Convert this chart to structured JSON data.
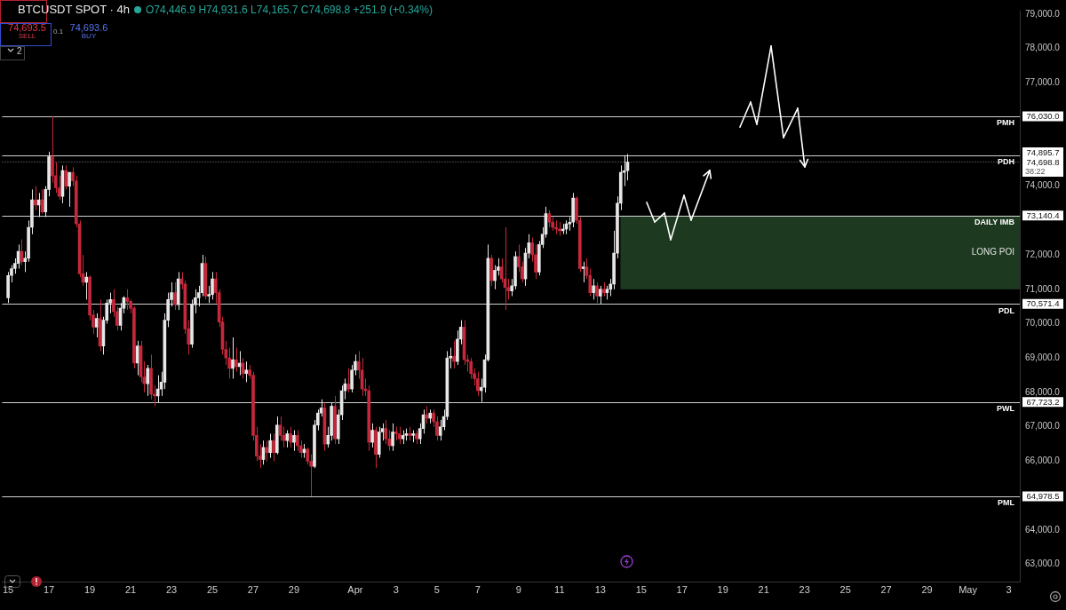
{
  "chart_data": {
    "type": "candlestick",
    "title": "BTCUSDT SPOT · 4h",
    "annotations": [
      "O74,446.9 H74,931.6 L74,165.7 C74,698.8 +251.9 (+0.34%)",
      "74,693.5",
      "SELL",
      "0.1",
      "74,693.6",
      "BUY",
      "2",
      "38:22"
    ],
    "x": [
      "--03-15T00:00",
      "--03-15T04:00",
      "--03-15T08:00",
      "--03-15T12:00",
      "--03-15T16:00",
      "--03-15T20:00",
      "--03-16T00:00",
      "--03-16T04:00",
      "--03-16T08:00",
      "--03-16T12:00",
      "--03-16T16:00",
      "--03-16T20:00",
      "--03-17T00:00",
      "--03-17T04:00",
      "--03-17T08:00",
      "--03-17T12:00",
      "--03-17T16:00",
      "--03-17T20:00",
      "--03-18T00:00",
      "--03-18T04:00",
      "--03-18T08:00",
      "--03-18T12:00",
      "--03-18T16:00",
      "--03-18T20:00",
      "--03-19T00:00",
      "--03-19T04:00",
      "--03-19T08:00",
      "--03-19T12:00",
      "--03-19T16:00",
      "--03-19T20:00",
      "--03-20T00:00",
      "--03-20T04:00",
      "--03-20T08:00",
      "--03-20T12:00",
      "--03-20T16:00",
      "--03-20T20:00",
      "--03-21T00:00",
      "--03-21T04:00",
      "--03-21T08:00",
      "--03-21T12:00",
      "--03-21T16:00",
      "--03-21T20:00",
      "--03-22T00:00",
      "--03-22T04:00",
      "--03-22T08:00",
      "--03-22T12:00",
      "--03-22T16:00",
      "--03-22T20:00",
      "--03-23T00:00",
      "--03-23T04:00",
      "--03-23T08:00",
      "--03-23T12:00",
      "--03-23T16:00",
      "--03-23T20:00",
      "--03-24T00:00",
      "--03-24T04:00",
      "--03-24T08:00",
      "--03-24T12:00",
      "--03-24T16:00",
      "--03-24T20:00",
      "--03-25T00:00",
      "--03-25T04:00",
      "--03-25T08:00",
      "--03-25T12:00",
      "--03-25T16:00",
      "--03-25T20:00",
      "--03-26T00:00",
      "--03-26T04:00",
      "--03-26T08:00",
      "--03-26T12:00",
      "--03-26T16:00",
      "--03-26T20:00",
      "--03-27T00:00",
      "--03-27T04:00",
      "--03-27T08:00",
      "--03-27T12:00",
      "--03-27T16:00",
      "--03-27T20:00",
      "--03-28T00:00",
      "--03-28T04:00",
      "--03-28T08:00",
      "--03-28T12:00",
      "--03-28T16:00",
      "--03-28T20:00",
      "--03-29T00:00",
      "--03-29T04:00",
      "--03-29T08:00",
      "--03-29T12:00",
      "--03-29T16:00",
      "--03-29T20:00",
      "--03-30T00:00",
      "--03-30T04:00",
      "--03-30T08:00",
      "--03-30T12:00",
      "--03-30T16:00",
      "--03-30T20:00",
      "--03-31T00:00",
      "--03-31T04:00",
      "--03-31T08:00",
      "--03-31T12:00",
      "--03-31T16:00",
      "--03-31T20:00",
      "--04-01T00:00",
      "--04-01T04:00",
      "--04-01T08:00",
      "--04-01T12:00",
      "--04-01T16:00",
      "--04-01T20:00",
      "--04-02T00:00",
      "--04-02T04:00",
      "--04-02T08:00",
      "--04-02T12:00",
      "--04-02T16:00",
      "--04-02T20:00",
      "--04-03T00:00",
      "--04-03T04:00",
      "--04-03T08:00",
      "--04-03T12:00",
      "--04-03T16:00",
      "--04-03T20:00",
      "--04-04T00:00",
      "--04-04T04:00",
      "--04-04T08:00",
      "--04-04T12:00",
      "--04-04T16:00",
      "--04-04T20:00",
      "--04-05T00:00",
      "--04-05T04:00",
      "--04-05T08:00",
      "--04-05T12:00",
      "--04-05T16:00",
      "--04-05T20:00",
      "--04-06T00:00",
      "--04-06T04:00",
      "--04-06T08:00",
      "--04-06T12:00",
      "--04-06T16:00",
      "--04-06T20:00",
      "--04-07T00:00",
      "--04-07T04:00",
      "--04-07T08:00",
      "--04-07T12:00",
      "--04-07T16:00",
      "--04-07T20:00",
      "--04-08T00:00",
      "--04-08T04:00",
      "--04-08T08:00",
      "--04-08T12:00",
      "--04-08T16:00",
      "--04-08T20:00",
      "--04-09T00:00",
      "--04-09T04:00",
      "--04-09T08:00",
      "--04-09T12:00",
      "--04-09T16:00",
      "--04-09T20:00",
      "--04-10T00:00",
      "--04-10T04:00",
      "--04-10T08:00",
      "--04-10T12:00",
      "--04-10T16:00",
      "--04-10T20:00",
      "--04-11T00:00",
      "--04-11T04:00",
      "--04-11T08:00",
      "--04-11T12:00",
      "--04-11T16:00",
      "--04-11T20:00",
      "--04-12T00:00",
      "--04-12T04:00",
      "--04-12T08:00",
      "--04-12T12:00",
      "--04-12T16:00",
      "--04-12T20:00",
      "--04-13T00:00",
      "--04-13T04:00",
      "--04-13T08:00",
      "--04-13T12:00",
      "--04-13T16:00",
      "--04-13T20:00",
      "--04-14T00:00",
      "--04-14T04:00",
      "--04-14T08:00"
    ],
    "ohlc": [
      [
        70750,
        71500,
        70600,
        71400
      ],
      [
        71400,
        71700,
        71200,
        71600
      ],
      [
        71600,
        71900,
        71450,
        71750
      ],
      [
        71750,
        72300,
        71600,
        72100
      ],
      [
        72100,
        72450,
        71700,
        71800
      ],
      [
        71800,
        72100,
        71500,
        71900
      ],
      [
        71900,
        73000,
        71800,
        72800
      ],
      [
        72800,
        73900,
        72600,
        73600
      ],
      [
        73600,
        74000,
        73300,
        73450
      ],
      [
        73450,
        73800,
        73100,
        73600
      ],
      [
        73600,
        73900,
        73200,
        73250
      ],
      [
        73250,
        74000,
        73100,
        73900
      ],
      [
        73900,
        75000,
        73700,
        74850
      ],
      [
        74850,
        76030,
        74100,
        74300
      ],
      [
        74300,
        74700,
        73800,
        73950
      ],
      [
        73950,
        74300,
        73600,
        73700
      ],
      [
        73700,
        74600,
        73500,
        74450
      ],
      [
        74450,
        74600,
        73900,
        74000
      ],
      [
        74000,
        74400,
        73400,
        74400
      ],
      [
        74400,
        74550,
        74000,
        74150
      ],
      [
        74150,
        74300,
        72800,
        72900
      ],
      [
        72900,
        73000,
        71350,
        71450
      ],
      [
        71450,
        72000,
        71100,
        71200
      ],
      [
        71200,
        71500,
        70700,
        71350
      ],
      [
        71350,
        71400,
        70100,
        70250
      ],
      [
        70250,
        70400,
        69700,
        69900
      ],
      [
        69900,
        70300,
        69600,
        70150
      ],
      [
        70150,
        70700,
        69200,
        69350
      ],
      [
        69350,
        70200,
        69100,
        70100
      ],
      [
        70100,
        70700,
        70000,
        70600
      ],
      [
        70600,
        70900,
        70300,
        70700
      ],
      [
        70700,
        71000,
        70200,
        70350
      ],
      [
        70350,
        70500,
        69800,
        69950
      ],
      [
        69950,
        70600,
        69800,
        70450
      ],
      [
        70450,
        70800,
        70300,
        70750
      ],
      [
        70750,
        71000,
        70400,
        70650
      ],
      [
        70650,
        70700,
        70300,
        70450
      ],
      [
        70450,
        70500,
        68700,
        68850
      ],
      [
        68850,
        69500,
        68500,
        69350
      ],
      [
        69350,
        69500,
        68300,
        68450
      ],
      [
        68450,
        68900,
        68000,
        68250
      ],
      [
        68250,
        68800,
        67900,
        68700
      ],
      [
        68700,
        69100,
        67800,
        67950
      ],
      [
        67950,
        68200,
        67600,
        67900
      ],
      [
        67900,
        68500,
        67700,
        68100
      ],
      [
        68100,
        68600,
        67900,
        68300
      ],
      [
        68300,
        70300,
        68100,
        70100
      ],
      [
        70100,
        70900,
        69900,
        70700
      ],
      [
        70700,
        71200,
        70500,
        70900
      ],
      [
        70900,
        71200,
        70400,
        70550
      ],
      [
        70550,
        71500,
        70400,
        71300
      ],
      [
        71300,
        71500,
        71000,
        71150
      ],
      [
        71150,
        71250,
        69700,
        69850
      ],
      [
        69850,
        70100,
        69100,
        69400
      ],
      [
        69400,
        70700,
        69300,
        70550
      ],
      [
        70550,
        71000,
        70300,
        70750
      ],
      [
        70750,
        71100,
        70500,
        70900
      ],
      [
        70900,
        72000,
        70800,
        71750
      ],
      [
        71750,
        71950,
        70700,
        70800
      ],
      [
        70800,
        71100,
        70600,
        70850
      ],
      [
        70850,
        71500,
        70700,
        71300
      ],
      [
        71300,
        71500,
        70600,
        70900
      ],
      [
        70900,
        71000,
        69900,
        70050
      ],
      [
        70050,
        70200,
        69100,
        69250
      ],
      [
        69250,
        69500,
        68800,
        69000
      ],
      [
        69000,
        69300,
        68400,
        68700
      ],
      [
        68700,
        69600,
        68400,
        68950
      ],
      [
        68950,
        69300,
        68600,
        68750
      ],
      [
        68750,
        69200,
        68500,
        68850
      ],
      [
        68850,
        69000,
        68400,
        68550
      ],
      [
        68550,
        68900,
        68300,
        68650
      ],
      [
        68650,
        68800,
        68400,
        68500
      ],
      [
        68500,
        68600,
        66600,
        66750
      ],
      [
        66750,
        67000,
        66000,
        66150
      ],
      [
        66150,
        66500,
        65800,
        66050
      ],
      [
        66050,
        66600,
        65900,
        66400
      ],
      [
        66400,
        66600,
        66000,
        66250
      ],
      [
        66250,
        66800,
        66100,
        66600
      ],
      [
        66600,
        66800,
        66000,
        66250
      ],
      [
        66250,
        67300,
        66200,
        67050
      ],
      [
        67050,
        67300,
        66600,
        66750
      ],
      [
        66750,
        67000,
        66400,
        66600
      ],
      [
        66600,
        66900,
        66400,
        66800
      ],
      [
        66800,
        67000,
        66400,
        66550
      ],
      [
        66550,
        66900,
        66300,
        66750
      ],
      [
        66750,
        66900,
        66300,
        66450
      ],
      [
        66450,
        66600,
        66100,
        66250
      ],
      [
        66250,
        66500,
        66100,
        66350
      ],
      [
        66350,
        66400,
        65900,
        66000
      ],
      [
        66000,
        66200,
        64978.5,
        65850
      ],
      [
        65850,
        67200,
        65800,
        67050
      ],
      [
        67050,
        67500,
        66900,
        67400
      ],
      [
        67400,
        67800,
        67300,
        67550
      ],
      [
        67550,
        67700,
        66300,
        66500
      ],
      [
        66500,
        67000,
        66400,
        66750
      ],
      [
        66750,
        67700,
        66600,
        67600
      ],
      [
        67600,
        67900,
        66500,
        66650
      ],
      [
        66650,
        67500,
        66500,
        67350
      ],
      [
        67350,
        68200,
        67200,
        68050
      ],
      [
        68050,
        68400,
        67800,
        68250
      ],
      [
        68250,
        68700,
        68000,
        68100
      ],
      [
        68100,
        68800,
        68000,
        68650
      ],
      [
        68650,
        69100,
        68500,
        68900
      ],
      [
        68900,
        69200,
        68400,
        68650
      ],
      [
        68650,
        69000,
        67900,
        68100
      ],
      [
        68100,
        68400,
        67900,
        68050
      ],
      [
        68050,
        68200,
        66300,
        66550
      ],
      [
        66550,
        67100,
        66400,
        66900
      ],
      [
        66900,
        67000,
        65800,
        66200
      ],
      [
        66200,
        67000,
        66100,
        66850
      ],
      [
        66850,
        67100,
        66600,
        66950
      ],
      [
        66950,
        67200,
        66500,
        66650
      ],
      [
        66650,
        66900,
        66300,
        66450
      ],
      [
        66450,
        67100,
        66300,
        66850
      ],
      [
        66850,
        67000,
        66600,
        66800
      ],
      [
        66800,
        67000,
        66500,
        66650
      ],
      [
        66650,
        66900,
        66500,
        66750
      ],
      [
        66750,
        66950,
        66600,
        66800
      ],
      [
        66800,
        67000,
        66600,
        66750
      ],
      [
        66750,
        66900,
        66550,
        66800
      ],
      [
        66800,
        66900,
        66500,
        66650
      ],
      [
        66650,
        67100,
        66500,
        66950
      ],
      [
        66950,
        67500,
        66800,
        67350
      ],
      [
        67350,
        67600,
        67100,
        67250
      ],
      [
        67250,
        67500,
        67100,
        67400
      ],
      [
        67400,
        67500,
        67000,
        67150
      ],
      [
        67150,
        67300,
        66600,
        66750
      ],
      [
        66750,
        67200,
        66600,
        67000
      ],
      [
        67000,
        67500,
        66900,
        67300
      ],
      [
        67300,
        69200,
        67200,
        69000
      ],
      [
        69000,
        69300,
        68700,
        69050
      ],
      [
        69050,
        69500,
        68700,
        68900
      ],
      [
        68900,
        69800,
        68800,
        69550
      ],
      [
        69550,
        70100,
        69400,
        69900
      ],
      [
        69900,
        70100,
        68800,
        68950
      ],
      [
        68950,
        69100,
        68600,
        68900
      ],
      [
        68900,
        69000,
        68400,
        68550
      ],
      [
        68550,
        68700,
        68200,
        68400
      ],
      [
        68400,
        68600,
        67900,
        68050
      ],
      [
        68050,
        68400,
        67723.2,
        68150
      ],
      [
        68150,
        69100,
        68000,
        68950
      ],
      [
        68950,
        72300,
        68900,
        71900
      ],
      [
        71900,
        72000,
        71100,
        71250
      ],
      [
        71250,
        71700,
        71000,
        71550
      ],
      [
        71550,
        71900,
        71400,
        71650
      ],
      [
        71650,
        71900,
        71200,
        71300
      ],
      [
        71300,
        72800,
        70400,
        71050
      ],
      [
        71050,
        71300,
        70700,
        70950
      ],
      [
        70950,
        71300,
        70800,
        71100
      ],
      [
        71100,
        72100,
        71000,
        71950
      ],
      [
        71950,
        72300,
        71500,
        71650
      ],
      [
        71650,
        71800,
        71200,
        71300
      ],
      [
        71300,
        72200,
        71100,
        72050
      ],
      [
        72050,
        72600,
        71900,
        72350
      ],
      [
        72350,
        72500,
        71800,
        72000
      ],
      [
        72000,
        72300,
        71300,
        71500
      ],
      [
        71500,
        72400,
        71400,
        72300
      ],
      [
        72300,
        72800,
        72200,
        72600
      ],
      [
        72600,
        73400,
        72500,
        73200
      ],
      [
        73200,
        73300,
        72800,
        72950
      ],
      [
        72950,
        73100,
        72700,
        72800
      ],
      [
        72800,
        73000,
        72600,
        72750
      ],
      [
        72750,
        72950,
        72550,
        72700
      ],
      [
        72700,
        72900,
        72600,
        72750
      ],
      [
        72750,
        73000,
        72600,
        72900
      ],
      [
        72900,
        73100,
        72700,
        72950
      ],
      [
        72950,
        73800,
        72800,
        73650
      ],
      [
        73650,
        73700,
        72900,
        73000
      ],
      [
        73000,
        73100,
        71500,
        71600
      ],
      [
        71600,
        71800,
        71200,
        71650
      ],
      [
        71650,
        71900,
        71300,
        71400
      ],
      [
        71400,
        71600,
        70800,
        70900
      ],
      [
        70900,
        71300,
        70700,
        71100
      ],
      [
        71100,
        71200,
        70600,
        70800
      ],
      [
        70800,
        71100,
        70571.4,
        71000
      ],
      [
        71000,
        71200,
        70800,
        70900
      ],
      [
        70900,
        71100,
        70700,
        71000
      ],
      [
        71000,
        71300,
        70800,
        71150
      ],
      [
        71150,
        72700,
        71000,
        72050
      ],
      [
        72050,
        73700,
        71900,
        73500
      ],
      [
        73500,
        74600,
        73300,
        74400
      ],
      [
        74400,
        74895.7,
        74000,
        74446.9
      ],
      [
        74446.9,
        74931.6,
        74165.7,
        74698.8
      ]
    ],
    "colors": [
      "#e6e6e6",
      "#e6e6e6",
      "#e6e6e6",
      "#e6e6e6",
      "#c4283a",
      "#e6e6e6",
      "#e6e6e6",
      "#e6e6e6",
      "#c4283a",
      "#e6e6e6",
      "#c4283a",
      "#e6e6e6",
      "#e6e6e6",
      "#c4283a",
      "#c4283a",
      "#c4283a",
      "#e6e6e6",
      "#c4283a",
      "#e6e6e6",
      "#c4283a",
      "#c4283a",
      "#c4283a",
      "#c4283a",
      "#e6e6e6",
      "#c4283a",
      "#c4283a",
      "#e6e6e6",
      "#c4283a",
      "#e6e6e6",
      "#e6e6e6",
      "#e6e6e6",
      "#c4283a",
      "#c4283a",
      "#e6e6e6",
      "#e6e6e6",
      "#c4283a",
      "#c4283a",
      "#c4283a",
      "#e6e6e6",
      "#c4283a",
      "#c4283a",
      "#e6e6e6",
      "#c4283a",
      "#c4283a",
      "#e6e6e6",
      "#e6e6e6",
      "#e6e6e6",
      "#e6e6e6",
      "#e6e6e6",
      "#c4283a",
      "#e6e6e6",
      "#c4283a",
      "#c4283a",
      "#c4283a",
      "#e6e6e6",
      "#e6e6e6",
      "#e6e6e6",
      "#e6e6e6",
      "#c4283a",
      "#e6e6e6",
      "#e6e6e6",
      "#c4283a",
      "#c4283a",
      "#c4283a",
      "#c4283a",
      "#c4283a",
      "#e6e6e6",
      "#c4283a",
      "#e6e6e6",
      "#c4283a",
      "#e6e6e6",
      "#c4283a",
      "#c4283a",
      "#c4283a",
      "#c4283a",
      "#e6e6e6",
      "#c4283a",
      "#e6e6e6",
      "#c4283a",
      "#e6e6e6",
      "#c4283a",
      "#c4283a",
      "#e6e6e6",
      "#c4283a",
      "#e6e6e6",
      "#c4283a",
      "#c4283a",
      "#e6e6e6",
      "#c4283a",
      "#c4283a",
      "#e6e6e6",
      "#e6e6e6",
      "#e6e6e6",
      "#c4283a",
      "#e6e6e6",
      "#e6e6e6",
      "#c4283a",
      "#e6e6e6",
      "#e6e6e6",
      "#e6e6e6",
      "#c4283a",
      "#e6e6e6",
      "#e6e6e6",
      "#c4283a",
      "#c4283a",
      "#c4283a",
      "#c4283a",
      "#e6e6e6",
      "#c4283a",
      "#e6e6e6",
      "#e6e6e6",
      "#c4283a",
      "#c4283a",
      "#e6e6e6",
      "#c4283a",
      "#c4283a",
      "#e6e6e6",
      "#e6e6e6",
      "#c4283a",
      "#e6e6e6",
      "#c4283a",
      "#e6e6e6",
      "#e6e6e6",
      "#c4283a",
      "#e6e6e6",
      "#c4283a",
      "#c4283a",
      "#e6e6e6",
      "#e6e6e6",
      "#e6e6e6",
      "#e6e6e6",
      "#c4283a",
      "#e6e6e6",
      "#e6e6e6",
      "#c4283a",
      "#c4283a",
      "#c4283a",
      "#c4283a",
      "#c4283a",
      "#e6e6e6",
      "#e6e6e6",
      "#e6e6e6",
      "#c4283a",
      "#e6e6e6",
      "#e6e6e6",
      "#c4283a",
      "#c4283a",
      "#c4283a",
      "#e6e6e6",
      "#e6e6e6",
      "#c4283a",
      "#c4283a",
      "#e6e6e6",
      "#e6e6e6",
      "#c4283a",
      "#c4283a",
      "#e6e6e6",
      "#e6e6e6",
      "#e6e6e6",
      "#c4283a",
      "#c4283a",
      "#c4283a",
      "#c4283a",
      "#e6e6e6",
      "#e6e6e6",
      "#e6e6e6",
      "#e6e6e6",
      "#c4283a",
      "#c4283a",
      "#e6e6e6",
      "#c4283a",
      "#c4283a",
      "#e6e6e6",
      "#c4283a",
      "#e6e6e6",
      "#c4283a",
      "#e6e6e6",
      "#e6e6e6",
      "#e6e6e6",
      "#e6e6e6",
      "#e6e6e6",
      "#e6e6e6",
      "#e6e6e6"
    ],
    "xlim": [
      "--03-14T17:00",
      "--05-03T13:00"
    ],
    "xticks": [
      {
        "value": "--03-15",
        "label": "15"
      },
      {
        "value": "--03-17",
        "label": "17"
      },
      {
        "value": "--03-19",
        "label": "19"
      },
      {
        "value": "--03-21",
        "label": "21"
      },
      {
        "value": "--03-23",
        "label": "23"
      },
      {
        "value": "--03-25",
        "label": "25"
      },
      {
        "value": "--03-27",
        "label": "27"
      },
      {
        "value": "--03-29",
        "label": "29"
      },
      {
        "value": "--04-01",
        "label": "Apr"
      },
      {
        "value": "--04-03",
        "label": "3"
      },
      {
        "value": "--04-05",
        "label": "5"
      },
      {
        "value": "--04-07",
        "label": "7"
      },
      {
        "value": "--04-09",
        "label": "9"
      },
      {
        "value": "--04-11",
        "label": "11"
      },
      {
        "value": "--04-13",
        "label": "13"
      },
      {
        "value": "--04-15",
        "label": "15"
      },
      {
        "value": "--04-17",
        "label": "17"
      },
      {
        "value": "--04-19",
        "label": "19"
      },
      {
        "value": "--04-21",
        "label": "21"
      },
      {
        "value": "--04-23",
        "label": "23"
      },
      {
        "value": "--04-25",
        "label": "25"
      },
      {
        "value": "--04-27",
        "label": "27"
      },
      {
        "value": "--04-29",
        "label": "29"
      },
      {
        "value": "--05-01",
        "label": "May"
      },
      {
        "value": "--05-03",
        "label": "3"
      }
    ],
    "ylim": [
      62500,
      79100
    ],
    "yticks": [
      {
        "value": 63000,
        "label": "63,000.0"
      },
      {
        "value": 64000,
        "label": "64,000.0"
      },
      {
        "value": 66000,
        "label": "66,000.0"
      },
      {
        "value": 67000,
        "label": "67,000.0"
      },
      {
        "value": 68000,
        "label": "68,000.0"
      },
      {
        "value": 69000,
        "label": "69,000.0"
      },
      {
        "value": 70000,
        "label": "70,000.0"
      },
      {
        "value": 71000,
        "label": "71,000.0"
      },
      {
        "value": 72000,
        "label": "72,000.0"
      },
      {
        "value": 74000,
        "label": "74,000.0"
      },
      {
        "value": 77000,
        "label": "77,000.0"
      },
      {
        "value": 76030,
        "label": "76,030.0"
      },
      {
        "value": 74895.7,
        "label": "74,895.7"
      },
      {
        "value": 74698.8,
        "label": "74,698.8"
      },
      {
        "value": 73140.4,
        "label": "73,140.4"
      },
      {
        "value": 70571.4,
        "label": "70,571.4"
      },
      {
        "value": 67723.2,
        "label": "67,723.2"
      },
      {
        "value": 64978.5,
        "label": "64,978.5"
      },
      {
        "value": 78000,
        "label": "78,000.0"
      },
      {
        "value": 79000,
        "label": "79,000.0"
      }
    ],
    "ref_lines": [
      {
        "axis": "y",
        "value": 76030,
        "label": "PMH",
        "color": "#d0d0d0",
        "line_style": "solid"
      },
      {
        "axis": "y",
        "value": 74895.7,
        "label": "PDH",
        "color": "#d0d0d0",
        "line_style": "solid"
      },
      {
        "axis": "y",
        "value": 74698.8,
        "label": null,
        "color": "#8a8a8a",
        "line_style": "dotted"
      },
      {
        "axis": "y",
        "value": 73140.4,
        "label": "DAILY IMB",
        "color": "#d0d0d0",
        "line_style": "solid"
      },
      {
        "axis": "y",
        "value": 70571.4,
        "label": "PDL",
        "color": "#d0d0d0",
        "line_style": "solid"
      },
      {
        "axis": "y",
        "value": 67723.2,
        "label": "PWL",
        "color": "#d0d0d0",
        "line_style": "solid"
      },
      {
        "axis": "y",
        "value": 64978.5,
        "label": "PML",
        "color": "#d0d0d0",
        "line_style": "solid"
      }
    ],
    "bands": [
      {
        "axis": "y",
        "from": 71000,
        "to": 73140.4,
        "label": "LONG POI",
        "color": "#1d3a20"
      }
    ]
  }
}
